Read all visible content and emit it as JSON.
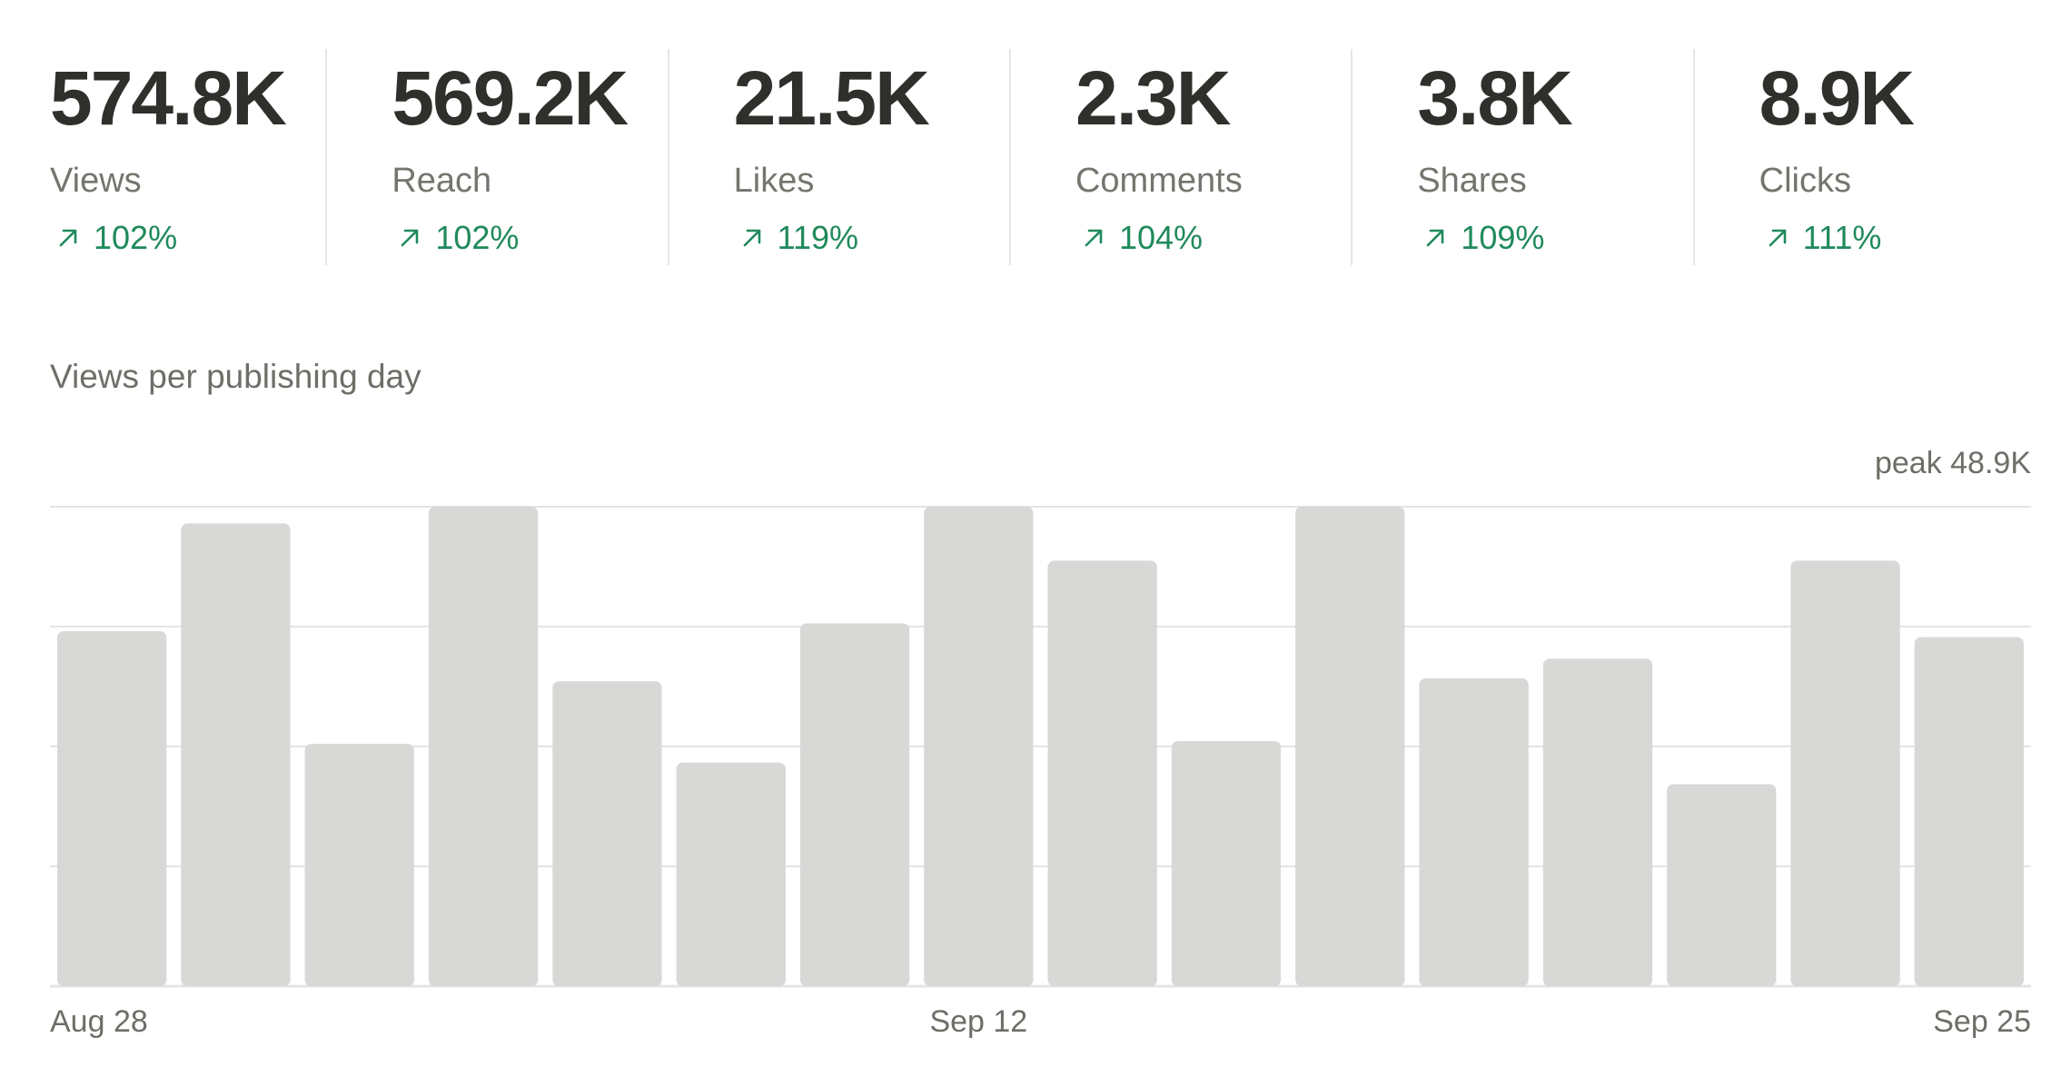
{
  "stats": [
    {
      "value": "574.8K",
      "label": "Views",
      "change": "102%"
    },
    {
      "value": "569.2K",
      "label": "Reach",
      "change": "102%"
    },
    {
      "value": "21.5K",
      "label": "Likes",
      "change": "119%"
    },
    {
      "value": "2.3K",
      "label": "Comments",
      "change": "104%"
    },
    {
      "value": "3.8K",
      "label": "Shares",
      "change": "109%"
    },
    {
      "value": "8.9K",
      "label": "Clicks",
      "change": "111%"
    }
  ],
  "colors": {
    "positive": "#1f8a5b",
    "bar": "#d8d8d7",
    "grid": "#e4e4e1",
    "text_muted": "#6e6e68"
  },
  "chart_data": {
    "type": "bar",
    "title": "Views per publishing day",
    "peak_label": "peak 48.9K",
    "xlabel": "",
    "ylabel": "",
    "ylim": [
      0,
      48.9
    ],
    "grid": "horizontal",
    "x_ticks": [
      "Aug 28",
      "Sep 12",
      "Sep 25"
    ],
    "values": [
      36.2,
      47.2,
      24.7,
      48.9,
      31.1,
      22.8,
      37.0,
      48.9,
      43.4,
      25.0,
      48.9,
      31.4,
      33.4,
      20.6,
      43.4,
      35.6
    ]
  }
}
